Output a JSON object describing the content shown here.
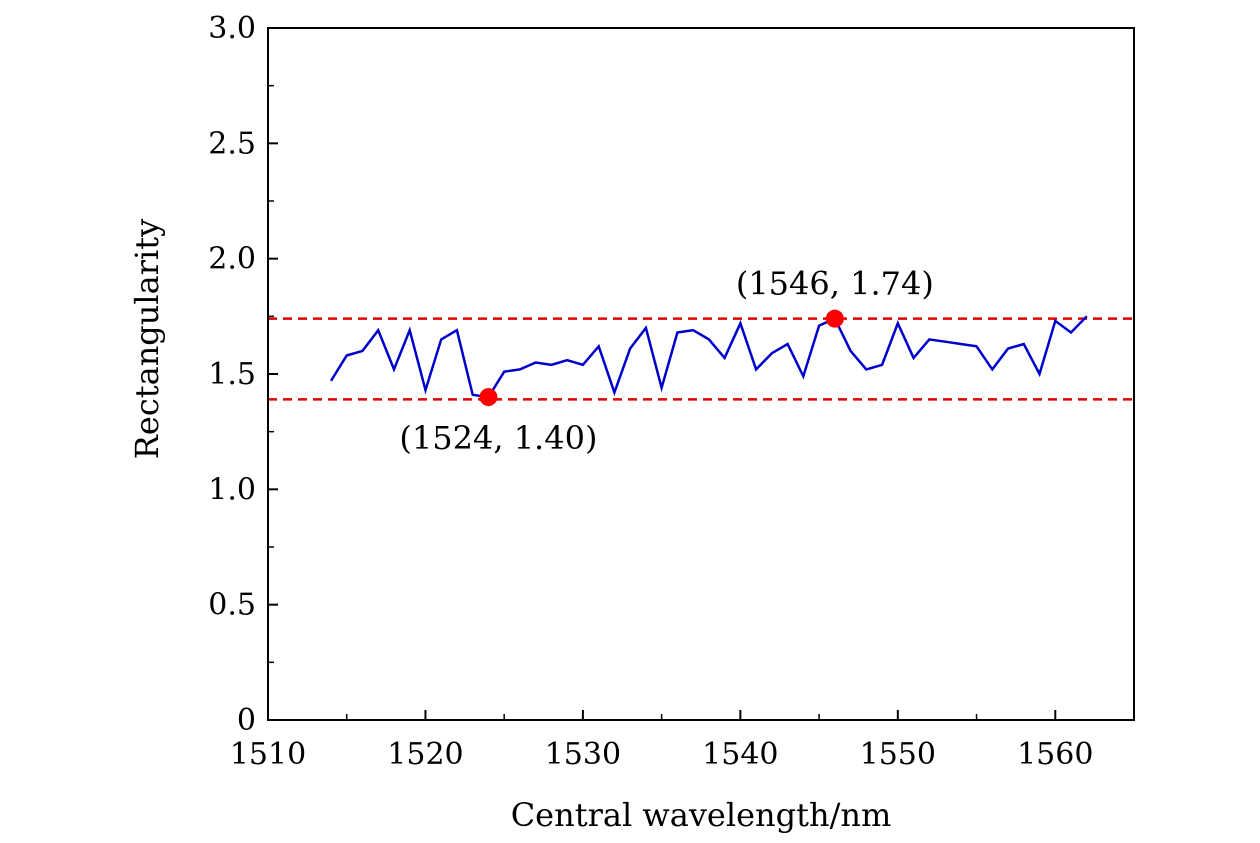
{
  "chart_data": {
    "type": "line",
    "title": "",
    "xlabel": "Central wavelength/nm",
    "ylabel": "Rectangularity",
    "xlim": [
      1510,
      1565
    ],
    "ylim": [
      0,
      3.0
    ],
    "x_ticks": [
      1510,
      1520,
      1530,
      1540,
      1550,
      1560
    ],
    "x_tick_labels": [
      "1510",
      "1520",
      "1530",
      "1540",
      "1550",
      "1560"
    ],
    "y_ticks": [
      0,
      0.5,
      1.0,
      1.5,
      2.0,
      2.5,
      3.0
    ],
    "y_tick_labels": [
      "0",
      "0.5",
      "1.0",
      "1.5",
      "2.0",
      "2.5",
      "3.0"
    ],
    "grid": false,
    "series": [
      {
        "color": "#0000cc",
        "x": [
          1514,
          1515,
          1516,
          1517,
          1518,
          1519,
          1520,
          1521,
          1522,
          1523,
          1524,
          1525,
          1526,
          1527,
          1528,
          1529,
          1530,
          1531,
          1532,
          1533,
          1534,
          1535,
          1536,
          1537,
          1538,
          1539,
          1540,
          1541,
          1542,
          1543,
          1544,
          1545,
          1546,
          1547,
          1548,
          1549,
          1550,
          1551,
          1552,
          1553,
          1554,
          1555,
          1556,
          1557,
          1558,
          1559,
          1560,
          1561,
          1562
        ],
        "y": [
          1.47,
          1.58,
          1.6,
          1.69,
          1.52,
          1.69,
          1.43,
          1.65,
          1.69,
          1.41,
          1.4,
          1.51,
          1.52,
          1.55,
          1.54,
          1.56,
          1.54,
          1.62,
          1.42,
          1.61,
          1.7,
          1.44,
          1.68,
          1.69,
          1.65,
          1.57,
          1.72,
          1.52,
          1.59,
          1.63,
          1.49,
          1.71,
          1.74,
          1.6,
          1.52,
          1.54,
          1.72,
          1.57,
          1.65,
          1.64,
          1.63,
          1.62,
          1.52,
          1.61,
          1.63,
          1.5,
          1.73,
          1.68,
          1.75
        ]
      }
    ],
    "reference_lines": [
      {
        "y": 1.74,
        "color": "#e00000",
        "style": "dashed"
      },
      {
        "y": 1.39,
        "color": "#e00000",
        "style": "dashed"
      }
    ],
    "highlight_points": [
      {
        "x": 1524,
        "y": 1.4,
        "label": "(1524, 1.40)",
        "color": "#ff0000",
        "label_position": "below"
      },
      {
        "x": 1546,
        "y": 1.74,
        "label": "(1546, 1.74)",
        "color": "#ff0000",
        "label_position": "above"
      }
    ]
  }
}
